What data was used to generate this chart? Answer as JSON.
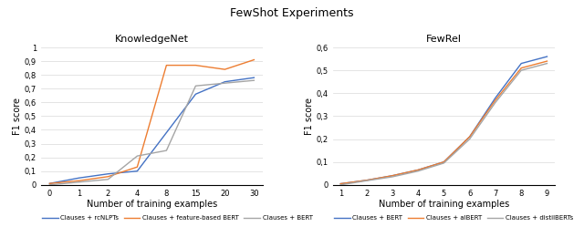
{
  "title": "FewShot Experiments",
  "title_fontsize": 9,
  "left_title": "KnowledgeNet",
  "right_title": "FewRel",
  "xlabel": "Number of training examples",
  "ylabel_left": "F1 score",
  "ylabel_right": "F1 score",
  "kn_xtick_labels": [
    "0",
    "1",
    "2",
    "4",
    "8",
    "15",
    "20",
    "30"
  ],
  "kn_ylim": [
    0,
    1.0
  ],
  "kn_ytick_vals": [
    0,
    0.1,
    0.2,
    0.3,
    0.4,
    0.5,
    0.6,
    0.7,
    0.8,
    0.9,
    1.0
  ],
  "kn_ytick_labels": [
    "0",
    "0,1",
    "0,2",
    "0,3",
    "0,4",
    "0,5",
    "0,6",
    "0,7",
    "0,8",
    "0,9",
    "1"
  ],
  "fr_xtick_labels": [
    "1",
    "2",
    "3",
    "4",
    "5",
    "6",
    "7",
    "8",
    "9"
  ],
  "fr_ylim": [
    0,
    0.6
  ],
  "fr_ytick_vals": [
    0,
    0.1,
    0.2,
    0.3,
    0.4,
    0.5,
    0.6
  ],
  "fr_ytick_labels": [
    "0",
    "0,1",
    "0,2",
    "0,3",
    "0,4",
    "0,5",
    "0,6"
  ],
  "kn_lines": [
    {
      "label": "Clauses + rcNLPTs",
      "color": "#4472C4",
      "y": [
        0.01,
        0.05,
        0.08,
        0.1,
        0.38,
        0.66,
        0.75,
        0.78
      ]
    },
    {
      "label": "Clauses + feature-based BERT",
      "color": "#ED7D31",
      "y": [
        0.01,
        0.03,
        0.06,
        0.13,
        0.87,
        0.87,
        0.84,
        0.91
      ]
    },
    {
      "label": "Clauses + BERT",
      "color": "#A5A5A5",
      "y": [
        0.0,
        0.02,
        0.04,
        0.21,
        0.25,
        0.72,
        0.74,
        0.76
      ]
    }
  ],
  "fr_lines": [
    {
      "label": "Clauses + BERT",
      "color": "#4472C4",
      "y": [
        0.005,
        0.02,
        0.04,
        0.065,
        0.1,
        0.21,
        0.38,
        0.53,
        0.56
      ]
    },
    {
      "label": "Clauses + alBERT",
      "color": "#ED7D31",
      "y": [
        0.005,
        0.02,
        0.04,
        0.065,
        0.1,
        0.21,
        0.37,
        0.51,
        0.54
      ]
    },
    {
      "label": "Clauses + distilBERTs",
      "color": "#A5A5A5",
      "y": [
        0.0,
        0.018,
        0.035,
        0.06,
        0.095,
        0.2,
        0.36,
        0.5,
        0.53
      ]
    }
  ],
  "bg_color": "#ffffff",
  "grid_color": "#d9d9d9",
  "tick_fontsize": 6,
  "label_fontsize": 7,
  "subtitle_fontsize": 8,
  "legend_fontsize": 5,
  "linewidth": 1.0
}
